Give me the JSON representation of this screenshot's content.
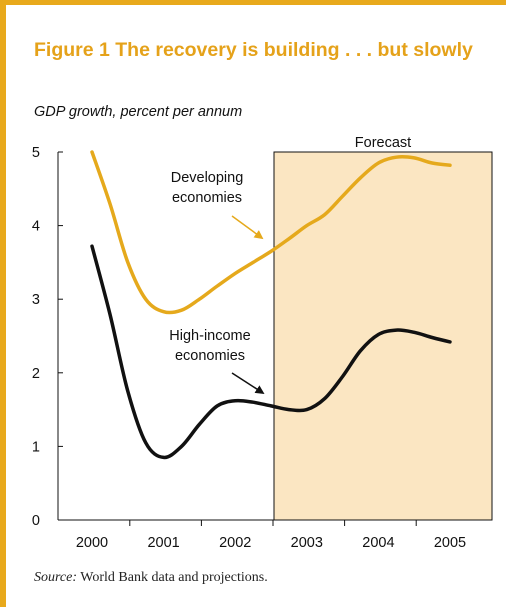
{
  "figure": {
    "title": "Figure 1  The recovery is building . . . but slowly",
    "subtitle": "GDP growth, percent per annum",
    "source_label": "Source:",
    "source_text": " World Bank data and projections."
  },
  "colors": {
    "frame": "#e8a91c",
    "title": "#e5a21a",
    "forecast_fill": "#fbe6c2",
    "developing": "#e5a91c",
    "high_income": "#111111"
  },
  "chart_data": {
    "type": "line",
    "ylim": [
      0,
      5
    ],
    "xlim": [
      2000,
      2005
    ],
    "yticks": [
      "0",
      "1",
      "2",
      "3",
      "4",
      "5"
    ],
    "xticks": [
      "2000",
      "2001",
      "2002",
      "2003",
      "2004",
      "2005"
    ],
    "forecast": {
      "label": "Forecast",
      "from": 2003,
      "to": 2005
    },
    "series": [
      {
        "name": "Developing economies",
        "x": [
          2000,
          2000.25,
          2000.5,
          2000.75,
          2001,
          2001.25,
          2001.5,
          2001.75,
          2002,
          2002.25,
          2002.5,
          2002.75,
          2003,
          2003.25,
          2003.5,
          2003.75,
          2004,
          2004.25,
          2004.5,
          2004.75,
          2005
        ],
        "values": [
          5.0,
          4.3,
          3.5,
          3.0,
          2.83,
          2.85,
          3.0,
          3.18,
          3.35,
          3.5,
          3.65,
          3.82,
          4.0,
          4.15,
          4.4,
          4.65,
          4.85,
          4.93,
          4.92,
          4.85,
          4.82
        ]
      },
      {
        "name": "High-income economies",
        "x": [
          2000,
          2000.25,
          2000.5,
          2000.75,
          2001,
          2001.25,
          2001.5,
          2001.75,
          2002,
          2002.25,
          2002.5,
          2002.75,
          2003,
          2003.25,
          2003.5,
          2003.75,
          2004,
          2004.25,
          2004.5,
          2004.75,
          2005
        ],
        "values": [
          3.72,
          2.8,
          1.75,
          1.05,
          0.85,
          1.0,
          1.3,
          1.55,
          1.62,
          1.6,
          1.55,
          1.5,
          1.5,
          1.65,
          1.95,
          2.3,
          2.52,
          2.58,
          2.55,
          2.48,
          2.42
        ]
      }
    ],
    "annotations": [
      {
        "series": 0,
        "lines": [
          "Developing",
          "economies"
        ]
      },
      {
        "series": 1,
        "lines": [
          "High-income",
          "economies"
        ]
      }
    ]
  }
}
